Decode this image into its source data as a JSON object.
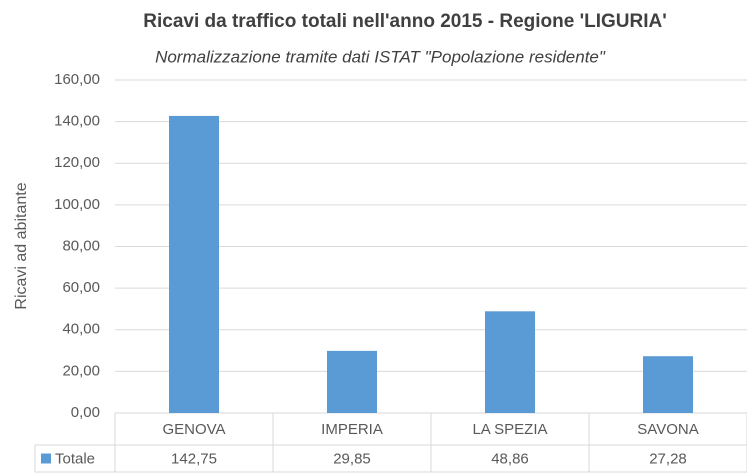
{
  "chart_data": {
    "type": "bar",
    "title": "Ricavi da traffico totali nell'anno 2015 - Regione 'LIGURIA'",
    "subtitle": "Normalizzazione tramite dati ISTAT \"Popolazione residente\"",
    "ylabel": "Ricavi ad abitante",
    "categories": [
      "GENOVA",
      "IMPERIA",
      "LA SPEZIA",
      "SAVONA"
    ],
    "series": [
      {
        "name": "Totale",
        "color": "#5b9bd5",
        "values": [
          142.75,
          29.85,
          48.86,
          27.28
        ],
        "value_labels": [
          "142,75",
          "29,85",
          "48,86",
          "27,28"
        ]
      }
    ],
    "ylim": [
      0,
      160
    ],
    "yticks": [
      {
        "value": 0,
        "label": "0,00"
      },
      {
        "value": 20,
        "label": "20,00"
      },
      {
        "value": 40,
        "label": "40,00"
      },
      {
        "value": 60,
        "label": "60,00"
      },
      {
        "value": 80,
        "label": "80,00"
      },
      {
        "value": 100,
        "label": "100,00"
      },
      {
        "value": 120,
        "label": "120,00"
      },
      {
        "value": 140,
        "label": "140,00"
      },
      {
        "value": 160,
        "label": "160,00"
      }
    ],
    "grid": true
  }
}
